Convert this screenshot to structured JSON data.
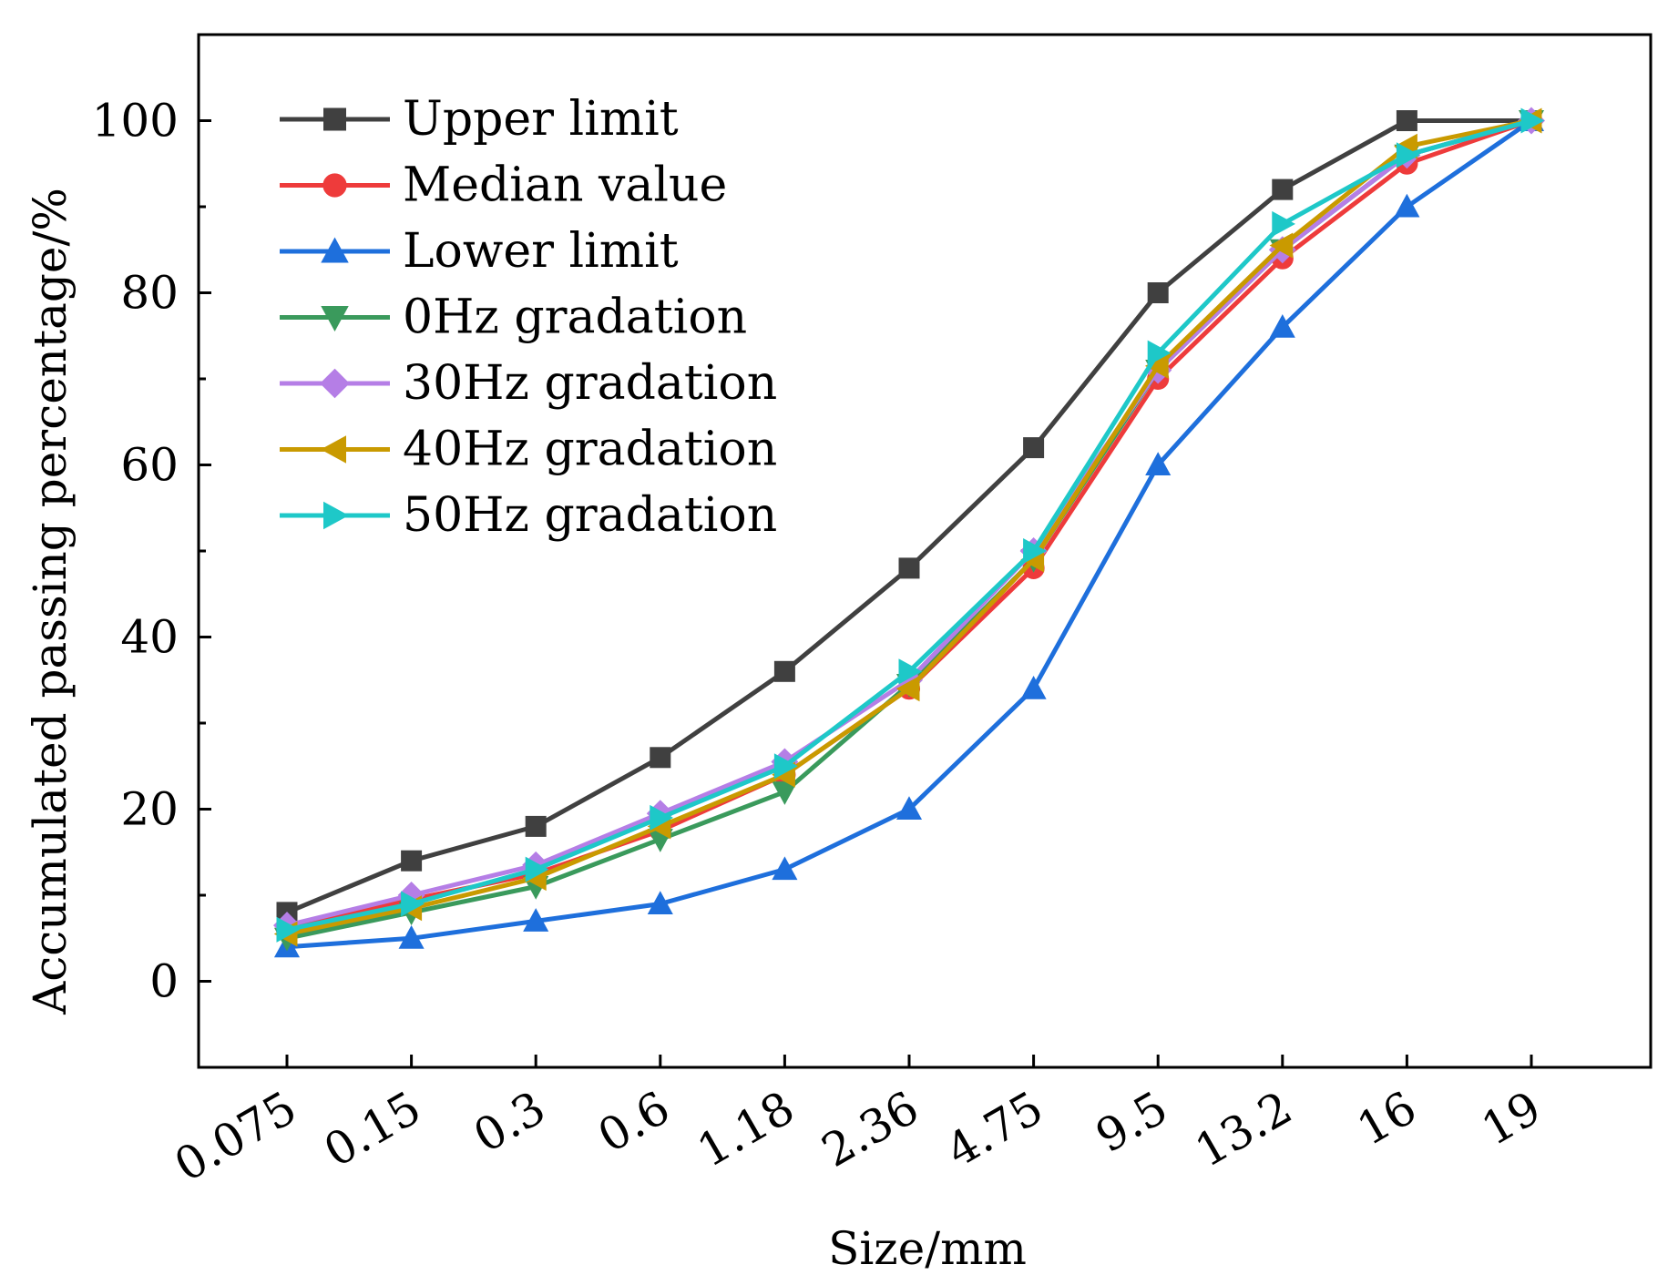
{
  "chart_data": {
    "type": "line",
    "title": "",
    "xlabel": "Size/mm",
    "ylabel": "Accumulated passing percentage/%",
    "categories": [
      "0.075",
      "0.15",
      "0.3",
      "0.6",
      "1.18",
      "2.36",
      "4.75",
      "9.5",
      "13.2",
      "16",
      "19"
    ],
    "ylim": [
      -10,
      110
    ],
    "yticks": [
      0,
      20,
      40,
      60,
      80,
      100
    ],
    "grid": false,
    "legend_position": "top-left",
    "series": [
      {
        "name": "Upper limit",
        "color": "#404040",
        "marker": "square",
        "values": [
          8,
          14,
          18,
          26,
          36,
          48,
          62,
          80,
          92,
          100,
          100
        ]
      },
      {
        "name": "Median value",
        "color": "#ee3b3b",
        "marker": "circle",
        "values": [
          6,
          9.5,
          12.5,
          17.5,
          24,
          34,
          48,
          70,
          84,
          95,
          100
        ]
      },
      {
        "name": "Lower limit",
        "color": "#1e6fdc",
        "marker": "triangle-up",
        "values": [
          4,
          5,
          7,
          9,
          13,
          20,
          34,
          60,
          76,
          90,
          100
        ]
      },
      {
        "name": "0Hz gradation",
        "color": "#3a9a5c",
        "marker": "triangle-down",
        "values": [
          5,
          8,
          11,
          16.5,
          22,
          34.5,
          49,
          71,
          85,
          96,
          100
        ]
      },
      {
        "name": "30Hz gradation",
        "color": "#b57ee6",
        "marker": "diamond",
        "values": [
          6.5,
          10,
          13.5,
          19.5,
          25.5,
          35,
          50,
          71,
          85,
          96,
          100
        ]
      },
      {
        "name": "40Hz gradation",
        "color": "#c99a00",
        "marker": "triangle-left",
        "values": [
          5.5,
          8.5,
          12,
          18,
          24,
          34,
          49,
          71.5,
          85.5,
          97,
          100
        ]
      },
      {
        "name": "50Hz gradation",
        "color": "#1ec8c8",
        "marker": "triangle-right",
        "values": [
          6,
          9,
          13,
          19,
          25,
          36,
          50,
          73,
          88,
          96,
          100
        ]
      }
    ]
  }
}
